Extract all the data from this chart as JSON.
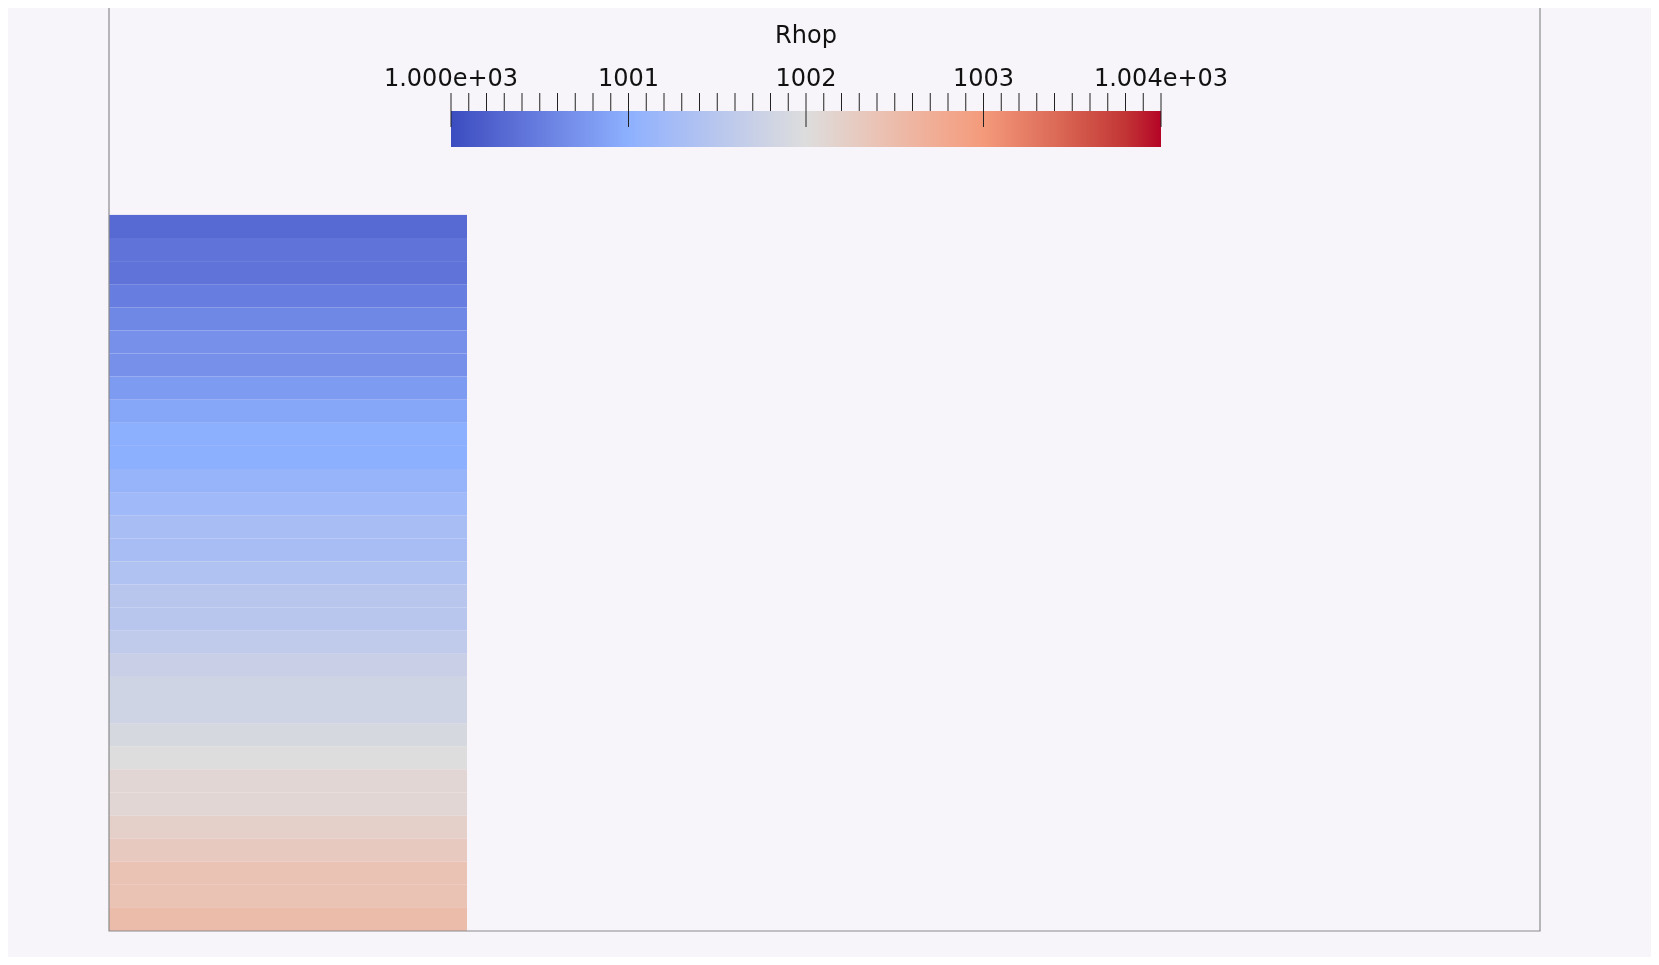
{
  "chart_data": {
    "type": "heatmap",
    "clabel": "Rhop",
    "categories": [
      null
    ],
    "y_categories": [
      null,
      null,
      null,
      null,
      null,
      null,
      null,
      null,
      null,
      null,
      null,
      null,
      null,
      null,
      null,
      null,
      null,
      null,
      null,
      null,
      null,
      null,
      null,
      null,
      null,
      null,
      null,
      null,
      null,
      null,
      null
    ],
    "cells": [
      [
        1000.3
      ],
      [
        1000.4
      ],
      [
        1000.4
      ],
      [
        1000.5
      ],
      [
        1000.6
      ],
      [
        1000.7
      ],
      [
        1000.7
      ],
      [
        1000.8
      ],
      [
        1000.9
      ],
      [
        1001.0
      ],
      [
        1001.0
      ],
      [
        1001.1
      ],
      [
        1001.2
      ],
      [
        1001.3
      ],
      [
        1001.3
      ],
      [
        1001.4
      ],
      [
        1001.5
      ],
      [
        1001.5
      ],
      [
        1001.6
      ],
      [
        1001.7
      ],
      [
        1001.8
      ],
      [
        1001.8
      ],
      [
        1001.9
      ],
      [
        1002.0
      ],
      [
        1002.1
      ],
      [
        1002.1
      ],
      [
        1002.2
      ],
      [
        1002.3
      ],
      [
        1002.4
      ],
      [
        1002.4
      ],
      [
        1002.5
      ]
    ],
    "clim": [
      1000,
      1004
    ],
    "cticks": [
      {
        "value": 1000,
        "label": "1.000e+03"
      },
      {
        "value": 1000.1,
        "label": null
      },
      {
        "value": 1000.2,
        "label": null
      },
      {
        "value": 1000.3,
        "label": null
      },
      {
        "value": 1000.4,
        "label": null
      },
      {
        "value": 1000.5,
        "label": null
      },
      {
        "value": 1000.6,
        "label": null
      },
      {
        "value": 1000.7,
        "label": null
      },
      {
        "value": 1000.8,
        "label": null
      },
      {
        "value": 1000.9,
        "label": null
      },
      {
        "value": 1001,
        "label": "1001"
      },
      {
        "value": 1001.1,
        "label": null
      },
      {
        "value": 1001.2,
        "label": null
      },
      {
        "value": 1001.3,
        "label": null
      },
      {
        "value": 1001.4,
        "label": null
      },
      {
        "value": 1001.5,
        "label": null
      },
      {
        "value": 1001.6,
        "label": null
      },
      {
        "value": 1001.7,
        "label": null
      },
      {
        "value": 1001.8,
        "label": null
      },
      {
        "value": 1001.9,
        "label": null
      },
      {
        "value": 1002,
        "label": "1002"
      },
      {
        "value": 1002.1,
        "label": null
      },
      {
        "value": 1002.2,
        "label": null
      },
      {
        "value": 1002.3,
        "label": null
      },
      {
        "value": 1002.4,
        "label": null
      },
      {
        "value": 1002.5,
        "label": null
      },
      {
        "value": 1002.6,
        "label": null
      },
      {
        "value": 1002.7,
        "label": null
      },
      {
        "value": 1002.8,
        "label": null
      },
      {
        "value": 1002.9,
        "label": null
      },
      {
        "value": 1003,
        "label": "1003"
      },
      {
        "value": 1003.1,
        "label": null
      },
      {
        "value": 1003.2,
        "label": null
      },
      {
        "value": 1003.3,
        "label": null
      },
      {
        "value": 1003.4,
        "label": null
      },
      {
        "value": 1003.5,
        "label": null
      },
      {
        "value": 1003.6,
        "label": null
      },
      {
        "value": 1003.7,
        "label": null
      },
      {
        "value": 1003.8,
        "label": null
      },
      {
        "value": 1003.9,
        "label": null
      },
      {
        "value": 1004,
        "label": "1.004e+03"
      }
    ]
  }
}
